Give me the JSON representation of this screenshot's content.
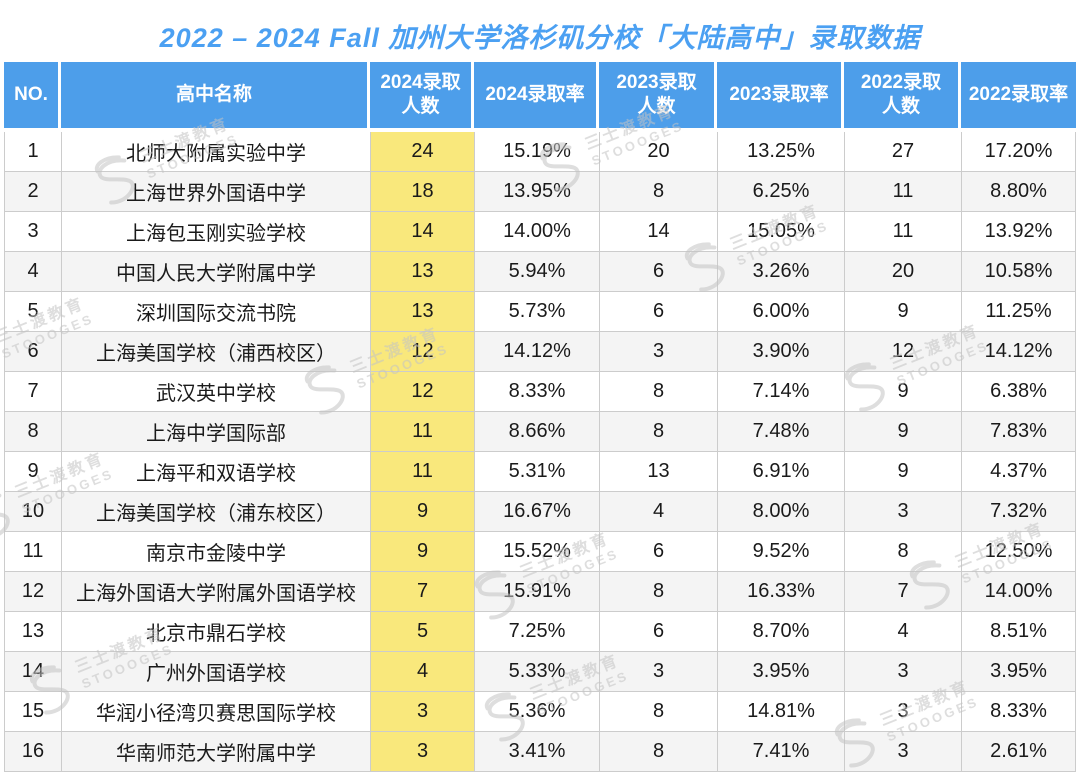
{
  "title": "2022 – 2024 Fall 加州大学洛杉矶分校「大陆高中」录取数据",
  "watermark": {
    "line1": "三士渡教育",
    "line2": "STOOOGES"
  },
  "colors": {
    "header_bg": "#4D9EEA",
    "highlight_column_bg": "#F9E87C",
    "row_alt_bg": "#F4F4F4",
    "title_text": "#4BA0F2",
    "border": "#CCCCCC"
  },
  "chart_data": {
    "type": "table",
    "title": "2022 – 2024 Fall 加州大学洛杉矶分校「大陆高中」录取数据",
    "columns": [
      "NO.",
      "高中名称",
      "2024录取\n人数",
      "2024录取率",
      "2023录取\n人数",
      "2023录取率",
      "2022录取\n人数",
      "2022录取率"
    ],
    "column_keys": [
      "no",
      "school-name",
      "admitted-2024",
      "rate-2024",
      "admitted-2023",
      "rate-2023",
      "admitted-2022",
      "rate-2022"
    ],
    "highlight_column_index": 2,
    "rows": [
      [
        "1",
        "北师大附属实验中学",
        "24",
        "15.19%",
        "20",
        "13.25%",
        "27",
        "17.20%"
      ],
      [
        "2",
        "上海世界外国语中学",
        "18",
        "13.95%",
        "8",
        "6.25%",
        "11",
        "8.80%"
      ],
      [
        "3",
        "上海包玉刚实验学校",
        "14",
        "14.00%",
        "14",
        "15.05%",
        "11",
        "13.92%"
      ],
      [
        "4",
        "中国人民大学附属中学",
        "13",
        "5.94%",
        "6",
        "3.26%",
        "20",
        "10.58%"
      ],
      [
        "5",
        "深圳国际交流书院",
        "13",
        "5.73%",
        "6",
        "6.00%",
        "9",
        "11.25%"
      ],
      [
        "6",
        "上海美国学校（浦西校区）",
        "12",
        "14.12%",
        "3",
        "3.90%",
        "12",
        "14.12%"
      ],
      [
        "7",
        "武汉英中学校",
        "12",
        "8.33%",
        "8",
        "7.14%",
        "9",
        "6.38%"
      ],
      [
        "8",
        "上海中学国际部",
        "11",
        "8.66%",
        "8",
        "7.48%",
        "9",
        "7.83%"
      ],
      [
        "9",
        "上海平和双语学校",
        "11",
        "5.31%",
        "13",
        "6.91%",
        "9",
        "4.37%"
      ],
      [
        "10",
        "上海美国学校（浦东校区）",
        "9",
        "16.67%",
        "4",
        "8.00%",
        "3",
        "7.32%"
      ],
      [
        "11",
        "南京市金陵中学",
        "9",
        "15.52%",
        "6",
        "9.52%",
        "8",
        "12.50%"
      ],
      [
        "12",
        "上海外国语大学附属外国语学校",
        "7",
        "15.91%",
        "8",
        "16.33%",
        "7",
        "14.00%"
      ],
      [
        "13",
        "北京市鼎石学校",
        "5",
        "7.25%",
        "6",
        "8.70%",
        "4",
        "8.51%"
      ],
      [
        "14",
        "广州外国语学校",
        "4",
        "5.33%",
        "3",
        "3.95%",
        "3",
        "3.95%"
      ],
      [
        "15",
        "华润小径湾贝赛思国际学校",
        "3",
        "5.36%",
        "8",
        "14.81%",
        "3",
        "8.33%"
      ],
      [
        "16",
        "华南师范大学附属中学",
        "3",
        "3.41%",
        "8",
        "7.41%",
        "3",
        "2.61%"
      ]
    ]
  }
}
